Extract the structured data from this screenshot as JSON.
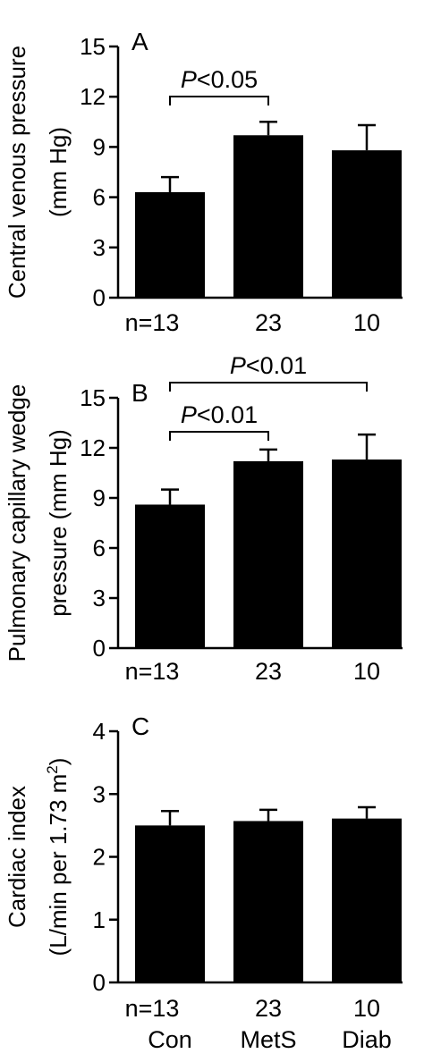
{
  "chart_data": [
    {
      "type": "bar",
      "panel_label": "A",
      "categories": [
        "Con",
        "MetS",
        "Diab"
      ],
      "n_labels": [
        "n=13",
        "23",
        "10"
      ],
      "values": [
        6.3,
        9.7,
        8.8
      ],
      "errors": [
        0.9,
        0.8,
        1.5
      ],
      "ylabel": [
        "Central venous pressure",
        "(mm Hg)"
      ],
      "ylim": [
        0,
        15
      ],
      "yticks": [
        "0",
        "3",
        "6",
        "9",
        "12",
        "15"
      ],
      "significance": [
        {
          "from": 0,
          "to": 1,
          "p": "P",
          "text": "<0.05"
        }
      ]
    },
    {
      "type": "bar",
      "panel_label": "B",
      "categories": [
        "Con",
        "MetS",
        "Diab"
      ],
      "n_labels": [
        "n=13",
        "23",
        "10"
      ],
      "values": [
        8.6,
        11.2,
        11.3
      ],
      "errors": [
        0.9,
        0.7,
        1.5
      ],
      "ylabel": [
        "Pulmonary capillary wedge",
        "pressure (mm Hg)"
      ],
      "ylim": [
        0,
        15
      ],
      "yticks": [
        "0",
        "3",
        "6",
        "9",
        "12",
        "15"
      ],
      "significance": [
        {
          "from": 0,
          "to": 1,
          "p": "P",
          "text": "<0.01"
        },
        {
          "from": 0,
          "to": 2,
          "p": "P",
          "text": "<0.01"
        }
      ]
    },
    {
      "type": "bar",
      "panel_label": "C",
      "categories": [
        "Con",
        "MetS",
        "Diab"
      ],
      "n_labels": [
        "n=13",
        "23",
        "10"
      ],
      "group_labels": [
        "Con",
        "MetS",
        "Diab"
      ],
      "values": [
        2.5,
        2.57,
        2.61
      ],
      "errors": [
        0.23,
        0.18,
        0.18
      ],
      "ylabel": [
        "Cardiac index",
        "(L/min per 1.73 m",
        "2",
        ")"
      ],
      "ylim": [
        0,
        4
      ],
      "yticks": [
        "0",
        "1",
        "2",
        "3",
        "4"
      ],
      "significance": []
    }
  ],
  "colors": {
    "bar": "#000000",
    "axis": "#000000",
    "background": "#ffffff"
  }
}
